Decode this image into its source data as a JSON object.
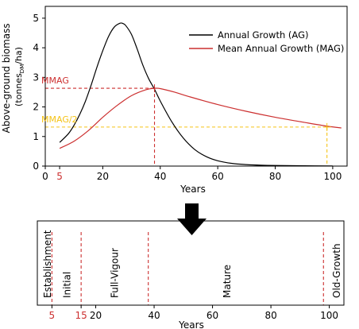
{
  "chart_data": [
    {
      "type": "line",
      "xlabel": "Years",
      "ylabel": "Above-ground biomass",
      "ylabel_unit_main": "(tonnes",
      "ylabel_unit_sub": "DM",
      "ylabel_unit_end": "/ha)",
      "xlim": [
        0,
        105
      ],
      "ylim": [
        0,
        5.4
      ],
      "xticks": [
        0,
        5,
        20,
        40,
        60,
        80,
        100
      ],
      "xtick_labels": [
        "0",
        "5",
        "20",
        "40",
        "60",
        "80",
        "100"
      ],
      "highlight_xtick": 5,
      "yticks": [
        0,
        1,
        2,
        3,
        4,
        5
      ],
      "ytick_labels": [
        "0",
        "1",
        "2",
        "3",
        "4",
        "5"
      ],
      "legend_position": "top-right",
      "series": [
        {
          "name": "Annual Growth (AG)",
          "color": "#000000",
          "x": [
            5,
            8,
            10,
            12,
            14,
            16,
            18,
            20,
            22,
            24,
            26,
            27,
            28,
            30,
            32,
            34,
            36,
            38,
            40,
            44,
            48,
            52,
            56,
            60,
            65,
            70,
            75,
            80,
            90,
            100
          ],
          "y": [
            0.8,
            1.09,
            1.38,
            1.75,
            2.2,
            2.75,
            3.35,
            3.9,
            4.38,
            4.7,
            4.83,
            4.82,
            4.75,
            4.45,
            3.95,
            3.4,
            2.95,
            2.6,
            2.2,
            1.5,
            0.95,
            0.56,
            0.32,
            0.18,
            0.09,
            0.05,
            0.03,
            0.02,
            0.01,
            0.005
          ]
        },
        {
          "name": "Mean Annual Growth (MAG)",
          "color": "#cc2f2f",
          "x": [
            5,
            10,
            15,
            20,
            25,
            30,
            35,
            38,
            40,
            45,
            50,
            60,
            70,
            80,
            90,
            98,
            103
          ],
          "y": [
            0.6,
            0.84,
            1.2,
            1.65,
            2.05,
            2.38,
            2.58,
            2.63,
            2.62,
            2.5,
            2.35,
            2.08,
            1.85,
            1.65,
            1.48,
            1.35,
            1.29
          ]
        }
      ],
      "reference_lines": [
        {
          "label": "MMAG",
          "color": "#cc2f2f",
          "y": 2.63,
          "x": 38
        },
        {
          "label": "MMAG/2",
          "color": "#f5c316",
          "y": 1.32,
          "x": 98
        }
      ]
    },
    {
      "type": "timeline",
      "xlabel": "Years",
      "xlim": [
        0,
        105
      ],
      "xticks": [
        5,
        15,
        20,
        40,
        60,
        80,
        100
      ],
      "xtick_labels": [
        "5",
        "15",
        "20",
        "40",
        "60",
        "80",
        "100"
      ],
      "highlight_xticks": [
        5,
        15
      ],
      "boundaries": [
        5,
        15,
        38,
        98
      ],
      "boundary_color": "#cc2f2f",
      "stages": [
        {
          "label": "Establishment",
          "x": 3.6
        },
        {
          "label": "Initial",
          "x": 10.2
        },
        {
          "label": "Full-Vigour",
          "x": 26.5
        },
        {
          "label": "Mature",
          "x": 65
        },
        {
          "label": "Old-Growth",
          "x": 102.5
        }
      ]
    }
  ]
}
